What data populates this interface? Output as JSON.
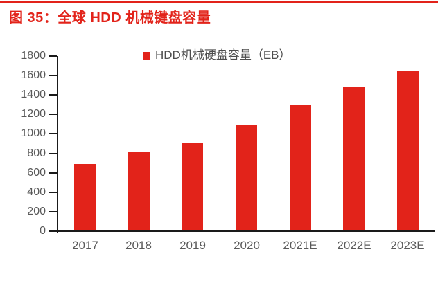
{
  "page": {
    "background": "#ffffff",
    "top_rule_color": "#e2231a"
  },
  "header": {
    "title": "图 35：全球 HDD 机械键盘容量",
    "title_color": "#e2231a"
  },
  "chart_data": {
    "type": "bar",
    "title": "图 35：全球 HDD 机械键盘容量",
    "categories": [
      "2017",
      "2018",
      "2019",
      "2020",
      "2021E",
      "2022E",
      "2023E"
    ],
    "values": [
      680,
      810,
      900,
      1090,
      1295,
      1475,
      1635
    ],
    "unit": "EB",
    "legend": [
      {
        "label": "HDD机械硬盘容量（EB）",
        "color": "#e2231a"
      }
    ],
    "legend_position": "top-center",
    "xlabel": "",
    "ylabel": "",
    "ylim": [
      0,
      1800
    ],
    "ytick_step": 200,
    "yticks": [
      0,
      200,
      400,
      600,
      800,
      1000,
      1200,
      1400,
      1600,
      1800
    ],
    "grid": false,
    "bar_color": "#e2231a",
    "axis_color": "#1a1a1a",
    "tick_label_color": "#595959",
    "legend_text_color": "#4d4d4d"
  }
}
